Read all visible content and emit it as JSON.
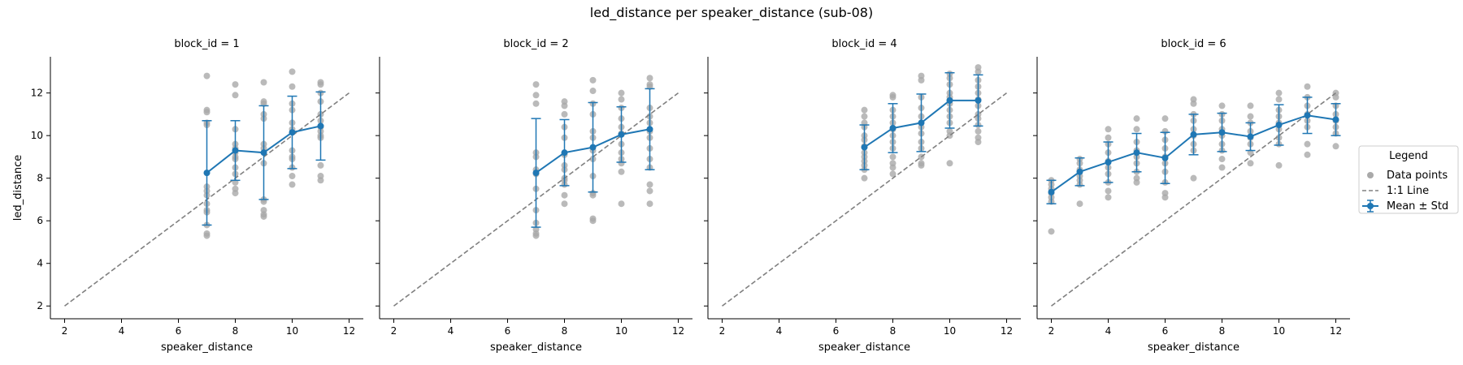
{
  "figure": {
    "title": "led_distance per speaker_distance (sub-08)",
    "colors": {
      "mean": "#1f77b4",
      "points": "#a9a9a9",
      "identity": "#808080"
    }
  },
  "legend": {
    "title": "Legend",
    "items": [
      {
        "label": "Data points",
        "type": "points"
      },
      {
        "label": "1:1 Line",
        "type": "identity"
      },
      {
        "label": "Mean ± Std",
        "type": "mean"
      }
    ]
  },
  "chart_data": [
    {
      "type": "scatter",
      "title": "block_id = 1",
      "xlabel": "speaker_distance",
      "ylabel": "led_distance",
      "xlim": [
        1.5,
        12.5
      ],
      "ylim": [
        1.4,
        13.7
      ],
      "xticks": [
        2,
        4,
        6,
        8,
        10,
        12
      ],
      "yticks": [
        2,
        4,
        6,
        8,
        10,
        12
      ],
      "identity_line": [
        [
          2,
          2
        ],
        [
          12,
          12
        ]
      ],
      "mean_std": {
        "x": [
          7,
          8,
          9,
          10,
          11
        ],
        "mean": [
          8.25,
          9.3,
          9.2,
          10.15,
          10.45
        ],
        "std": [
          2.45,
          1.4,
          2.2,
          1.7,
          1.6
        ]
      },
      "points": {
        "x": [
          7,
          7,
          7,
          7,
          7,
          7,
          7,
          7,
          7,
          7,
          7,
          7,
          7,
          7,
          8,
          8,
          8,
          8,
          8,
          8,
          8,
          8,
          8,
          8,
          8,
          8,
          8,
          9,
          9,
          9,
          9,
          9,
          9,
          9,
          9,
          9,
          9,
          9,
          9,
          9,
          10,
          10,
          10,
          10,
          10,
          10,
          10,
          10,
          10,
          10,
          10,
          10,
          11,
          11,
          11,
          11,
          11,
          11,
          11,
          11,
          11,
          11,
          11,
          11,
          11
        ],
        "y": [
          12.8,
          11.2,
          11.1,
          10.6,
          10.5,
          7.6,
          7.4,
          7.2,
          6.8,
          6.5,
          6.4,
          5.8,
          5.4,
          5.3,
          12.4,
          11.9,
          10.3,
          9.6,
          9.4,
          9.2,
          9.0,
          8.9,
          8.5,
          8.2,
          7.8,
          7.5,
          7.3,
          12.5,
          11.6,
          11.5,
          11.0,
          10.8,
          9.6,
          9.4,
          8.7,
          7.0,
          6.9,
          6.5,
          6.3,
          6.2,
          13.0,
          12.3,
          11.5,
          11.2,
          10.6,
          10.3,
          9.3,
          9.0,
          8.9,
          8.5,
          8.1,
          7.7,
          12.5,
          12.4,
          12.0,
          11.6,
          11.0,
          10.7,
          10.4,
          10.2,
          10.0,
          9.9,
          8.6,
          8.1,
          7.9
        ]
      }
    },
    {
      "type": "scatter",
      "title": "block_id = 2",
      "xlabel": "speaker_distance",
      "ylabel": "",
      "xlim": [
        1.5,
        12.5
      ],
      "ylim": [
        1.4,
        13.7
      ],
      "xticks": [
        2,
        4,
        6,
        8,
        10,
        12
      ],
      "yticks": [
        2,
        4,
        6,
        8,
        10,
        12
      ],
      "identity_line": [
        [
          2,
          2
        ],
        [
          12,
          12
        ]
      ],
      "mean_std": {
        "x": [
          7,
          8,
          9,
          10,
          11
        ],
        "mean": [
          8.25,
          9.2,
          9.45,
          10.05,
          10.3
        ],
        "std": [
          2.55,
          1.55,
          2.1,
          1.3,
          1.9
        ]
      },
      "points": {
        "x": [
          7,
          7,
          7,
          7,
          7,
          7,
          7,
          7,
          7,
          7,
          7,
          7,
          7,
          8,
          8,
          8,
          8,
          8,
          8,
          8,
          8,
          8,
          8,
          8,
          8,
          8,
          9,
          9,
          9,
          9,
          9,
          9,
          9,
          9,
          9,
          9,
          9,
          9,
          9,
          10,
          10,
          10,
          10,
          10,
          10,
          10,
          10,
          10,
          10,
          10,
          10,
          11,
          11,
          11,
          11,
          11,
          11,
          11,
          11,
          11,
          11,
          11,
          11,
          11,
          11
        ],
        "y": [
          12.4,
          11.9,
          11.5,
          9.2,
          9.0,
          8.4,
          8.2,
          7.5,
          6.5,
          5.9,
          5.6,
          5.4,
          5.3,
          11.6,
          11.4,
          11.0,
          10.4,
          9.9,
          9.1,
          8.6,
          8.4,
          8.0,
          7.9,
          7.7,
          7.2,
          6.8,
          12.6,
          12.1,
          11.5,
          11.0,
          10.2,
          9.9,
          9.3,
          8.9,
          8.1,
          7.3,
          7.2,
          6.1,
          6.0,
          12.0,
          11.7,
          11.3,
          10.8,
          10.4,
          10.1,
          9.6,
          9.2,
          8.9,
          8.7,
          8.3,
          6.8,
          12.7,
          12.4,
          12.3,
          11.3,
          10.9,
          10.6,
          10.2,
          9.9,
          9.4,
          8.9,
          8.5,
          7.7,
          7.4,
          6.8
        ]
      }
    },
    {
      "type": "scatter",
      "title": "block_id = 4",
      "xlabel": "speaker_distance",
      "ylabel": "",
      "xlim": [
        1.5,
        12.5
      ],
      "ylim": [
        1.4,
        13.7
      ],
      "xticks": [
        2,
        4,
        6,
        8,
        10,
        12
      ],
      "yticks": [
        2,
        4,
        6,
        8,
        10,
        12
      ],
      "identity_line": [
        [
          2,
          2
        ],
        [
          12,
          12
        ]
      ],
      "mean_std": {
        "x": [
          7,
          8,
          9,
          10,
          11
        ],
        "mean": [
          9.45,
          10.35,
          10.6,
          11.65,
          11.65
        ],
        "std": [
          1.05,
          1.15,
          1.35,
          1.3,
          1.2
        ]
      },
      "points": {
        "x": [
          7,
          7,
          7,
          7,
          7,
          7,
          7,
          7,
          7,
          7,
          7,
          7,
          7,
          8,
          8,
          8,
          8,
          8,
          8,
          8,
          8,
          8,
          8,
          8,
          8,
          8,
          9,
          9,
          9,
          9,
          9,
          9,
          9,
          9,
          9,
          9,
          9,
          9,
          10,
          10,
          10,
          10,
          10,
          10,
          10,
          10,
          10,
          10,
          10,
          10,
          11,
          11,
          11,
          11,
          11,
          11,
          11,
          11,
          11,
          11,
          11,
          11,
          11
        ],
        "y": [
          11.2,
          10.9,
          10.6,
          10.4,
          10.0,
          9.8,
          9.5,
          9.2,
          9.0,
          8.8,
          8.6,
          8.4,
          8.0,
          11.9,
          11.8,
          11.2,
          10.9,
          10.6,
          10.3,
          10.0,
          9.7,
          9.4,
          9.0,
          8.7,
          8.5,
          8.2,
          12.8,
          12.6,
          11.8,
          11.3,
          10.9,
          10.4,
          10.1,
          9.7,
          9.4,
          9.0,
          8.7,
          8.6,
          12.9,
          12.7,
          12.4,
          12.0,
          11.8,
          11.5,
          11.2,
          10.9,
          10.6,
          10.2,
          10.0,
          8.7,
          13.2,
          13.0,
          12.6,
          12.3,
          12.0,
          11.7,
          11.4,
          11.0,
          10.8,
          10.5,
          10.2,
          9.9,
          9.7
        ]
      }
    },
    {
      "type": "scatter",
      "title": "block_id = 6",
      "xlabel": "speaker_distance",
      "ylabel": "",
      "xlim": [
        1.5,
        12.5
      ],
      "ylim": [
        1.4,
        13.7
      ],
      "xticks": [
        2,
        4,
        6,
        8,
        10,
        12
      ],
      "yticks": [
        2,
        4,
        6,
        8,
        10,
        12
      ],
      "identity_line": [
        [
          2,
          2
        ],
        [
          12,
          12
        ]
      ],
      "mean_std": {
        "x": [
          2,
          3,
          4,
          5,
          6,
          7,
          8,
          9,
          10,
          11,
          12
        ],
        "mean": [
          7.35,
          8.3,
          8.75,
          9.2,
          8.95,
          10.05,
          10.15,
          9.95,
          10.5,
          10.95,
          10.75
        ],
        "std": [
          0.55,
          0.65,
          0.95,
          0.9,
          1.2,
          0.95,
          0.9,
          0.65,
          0.95,
          0.85,
          0.75
        ]
      },
      "points": {
        "x": [
          2,
          2,
          2,
          2,
          2,
          2,
          2,
          3,
          3,
          3,
          3,
          3,
          3,
          3,
          4,
          4,
          4,
          4,
          4,
          4,
          4,
          4,
          4,
          4,
          5,
          5,
          5,
          5,
          5,
          5,
          5,
          5,
          5,
          6,
          6,
          6,
          6,
          6,
          6,
          6,
          6,
          6,
          6,
          7,
          7,
          7,
          7,
          7,
          7,
          7,
          7,
          7,
          8,
          8,
          8,
          8,
          8,
          8,
          8,
          8,
          8,
          9,
          9,
          9,
          9,
          9,
          9,
          9,
          9,
          10,
          10,
          10,
          10,
          10,
          10,
          10,
          10,
          10,
          11,
          11,
          11,
          11,
          11,
          11,
          11,
          11,
          12,
          12,
          12,
          12,
          12,
          12,
          12,
          12
        ],
        "y": [
          7.9,
          7.7,
          7.5,
          7.3,
          7.1,
          6.9,
          5.5,
          8.9,
          8.7,
          8.4,
          8.1,
          7.9,
          7.7,
          6.8,
          10.3,
          9.9,
          9.6,
          9.2,
          8.8,
          8.5,
          8.2,
          7.8,
          7.4,
          7.1,
          10.8,
          10.3,
          9.7,
          9.3,
          9.0,
          8.7,
          8.3,
          8.0,
          7.8,
          10.8,
          10.2,
          9.8,
          9.4,
          9.0,
          8.7,
          8.3,
          7.8,
          7.3,
          7.1,
          11.7,
          11.5,
          11.0,
          10.7,
          10.3,
          10.0,
          9.6,
          9.3,
          8.0,
          11.4,
          11.0,
          10.7,
          10.3,
          10.0,
          9.6,
          9.3,
          8.9,
          8.5,
          11.4,
          10.9,
          10.6,
          10.2,
          9.9,
          9.6,
          9.2,
          8.7,
          12.0,
          11.7,
          11.2,
          10.9,
          10.6,
          10.3,
          9.9,
          9.6,
          8.6,
          12.3,
          11.8,
          11.4,
          11.0,
          10.7,
          10.4,
          9.6,
          9.1,
          12.0,
          11.8,
          11.4,
          11.0,
          10.7,
          10.4,
          10.1,
          9.5
        ]
      }
    }
  ]
}
